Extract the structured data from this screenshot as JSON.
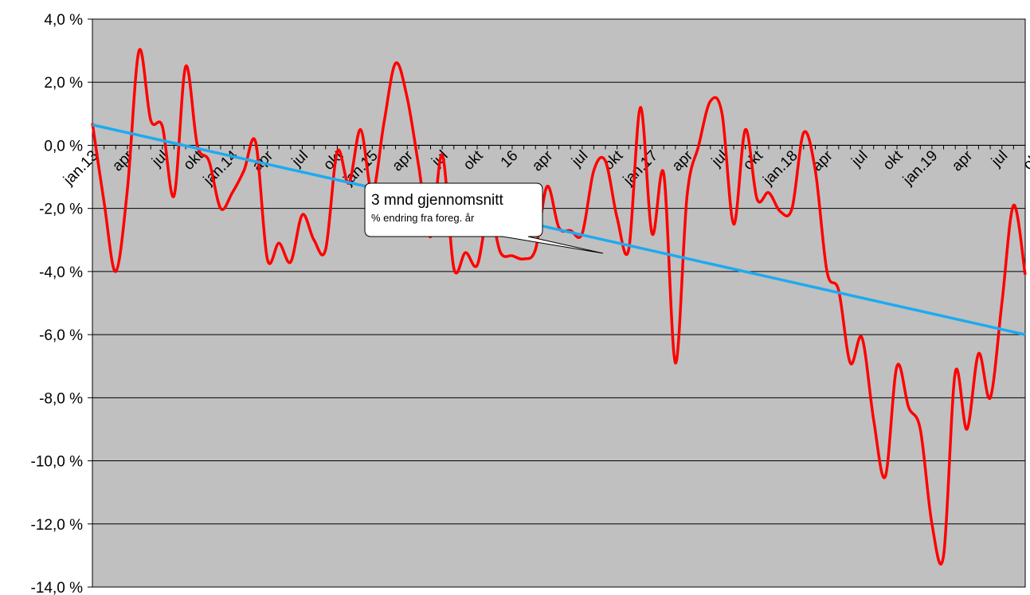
{
  "chart_data": {
    "type": "line",
    "title": "",
    "xlabel": "",
    "ylabel": "",
    "ylim": [
      -14,
      4
    ],
    "y_tick_values": [
      4,
      2,
      0,
      -2,
      -4,
      -6,
      -8,
      -10,
      -12,
      -14
    ],
    "y_tick_labels": [
      "4,0 %",
      "2,0 %",
      "0,0 %",
      "-2,0 %",
      "-4,0 %",
      "-6,0 %",
      "-8,0 %",
      "-10,0 %",
      "-12,0 %",
      "-14,0 %"
    ],
    "x_tick_labels": [
      {
        "label": "jan.13",
        "index": 0
      },
      {
        "label": "apr",
        "index": 3
      },
      {
        "label": "jul",
        "index": 6
      },
      {
        "label": "okt",
        "index": 9
      },
      {
        "label": "jan.14",
        "index": 12
      },
      {
        "label": "apr",
        "index": 15
      },
      {
        "label": "jul",
        "index": 18
      },
      {
        "label": "okt",
        "index": 21
      },
      {
        "label": "jan.15",
        "index": 24
      },
      {
        "label": "apr",
        "index": 27
      },
      {
        "label": "jul",
        "index": 30
      },
      {
        "label": "okt",
        "index": 33
      },
      {
        "label": "16",
        "index": 36
      },
      {
        "label": "apr",
        "index": 39
      },
      {
        "label": "jul",
        "index": 42
      },
      {
        "label": "okt",
        "index": 45
      },
      {
        "label": "jan.17",
        "index": 48
      },
      {
        "label": "apr",
        "index": 51
      },
      {
        "label": "jul",
        "index": 54
      },
      {
        "label": "okt",
        "index": 57
      },
      {
        "label": "jan.18",
        "index": 60
      },
      {
        "label": "apr",
        "index": 63
      },
      {
        "label": "jul",
        "index": 66
      },
      {
        "label": "okt",
        "index": 69
      },
      {
        "label": "jan.19",
        "index": 72
      },
      {
        "label": "apr",
        "index": 75
      },
      {
        "label": "jul",
        "index": 78
      },
      {
        "label": "okt",
        "index": 81
      }
    ],
    "grid": true,
    "background_color": "#c0c0c0",
    "series": [
      {
        "color": "#ff0000",
        "values": [
          0.7,
          -1.8,
          -4.0,
          -1.4,
          3.0,
          0.8,
          0.6,
          -1.6,
          2.5,
          0.0,
          -0.5,
          -2.0,
          -1.5,
          -0.8,
          0.1,
          -3.6,
          -3.1,
          -3.7,
          -2.2,
          -3.0,
          -3.3,
          -0.2,
          -1.2,
          0.5,
          -1.5,
          0.7,
          2.6,
          1.5,
          -0.7,
          -2.9,
          -0.3,
          -3.9,
          -3.4,
          -3.8,
          -2.1,
          -3.4,
          -3.5,
          -3.6,
          -3.3,
          -1.3,
          -2.6,
          -2.7,
          -2.8,
          -0.8,
          -0.5,
          -2.3,
          -3.3,
          1.2,
          -2.8,
          -0.9,
          -6.9,
          -1.6,
          0.0,
          1.4,
          1.0,
          -2.5,
          0.5,
          -1.7,
          -1.5,
          -2.1,
          -2.0,
          0.4,
          -0.8,
          -4.0,
          -4.6,
          -6.9,
          -6.1,
          -8.7,
          -10.5,
          -7.0,
          -8.3,
          -9.0,
          -12.0,
          -13.0,
          -7.2,
          -9.0,
          -6.6,
          -8.0,
          -5.0,
          -1.9,
          -4.1
        ]
      },
      {
        "color": "#1eaaf0",
        "type": "trendline",
        "values": [
          0.65,
          -6.0
        ]
      }
    ],
    "annotations": [
      {
        "title": "3 mnd gjennomsnitt",
        "subtitle": "% endring fra foreg. år"
      }
    ]
  }
}
